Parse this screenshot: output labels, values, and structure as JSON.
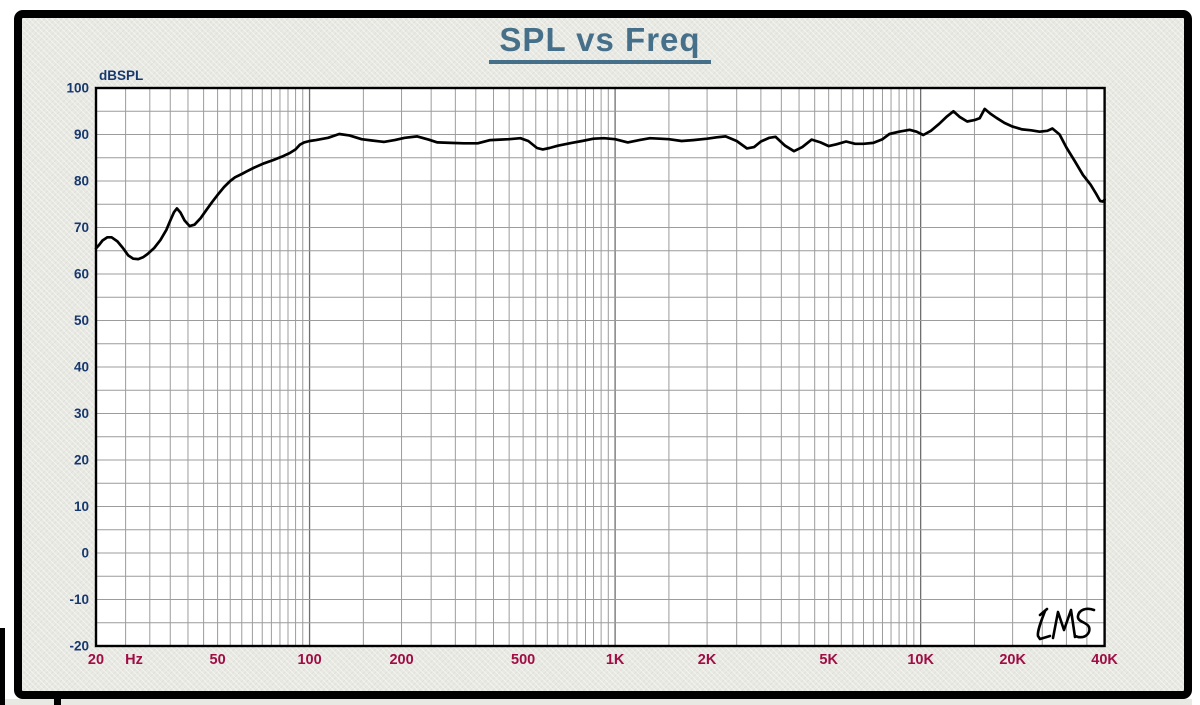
{
  "chart_data": {
    "type": "line",
    "title": "SPL vs Freq",
    "logo_text": "LMS",
    "legend": "none",
    "grid": "on",
    "x_axis": {
      "scale": "log",
      "unit": "Hz",
      "min": 20,
      "max": 40000,
      "ticks": [
        {
          "f": 20,
          "label": "20"
        },
        {
          "f": 50,
          "label": "50"
        },
        {
          "f": 100,
          "label": "100"
        },
        {
          "f": 200,
          "label": "200"
        },
        {
          "f": 500,
          "label": "500"
        },
        {
          "f": 1000,
          "label": "1K"
        },
        {
          "f": 2000,
          "label": "2K"
        },
        {
          "f": 5000,
          "label": "5K"
        },
        {
          "f": 10000,
          "label": "10K"
        },
        {
          "f": 20000,
          "label": "20K"
        },
        {
          "f": 40000,
          "label": "40K"
        }
      ]
    },
    "y_axis": {
      "label": "dBSPL",
      "min": -20,
      "max": 100,
      "minor_step": 5,
      "ticks": [
        {
          "v": 100,
          "label": "100"
        },
        {
          "v": 90,
          "label": "90"
        },
        {
          "v": 80,
          "label": "80"
        },
        {
          "v": 70,
          "label": "70"
        },
        {
          "v": 60,
          "label": "60"
        },
        {
          "v": 50,
          "label": "50"
        },
        {
          "v": 40,
          "label": "40"
        },
        {
          "v": 30,
          "label": "30"
        },
        {
          "v": 20,
          "label": "20"
        },
        {
          "v": 10,
          "label": "10"
        },
        {
          "v": 0,
          "label": "0"
        },
        {
          "v": -10,
          "label": "-10"
        },
        {
          "v": -20,
          "label": "-20"
        }
      ]
    },
    "colors": {
      "title": "#46708a",
      "y_labels": "#17386d",
      "x_labels": "#a00d45",
      "grid": "#9c9c9c",
      "grid_decade": "#6f6f6f",
      "curve": "#000000",
      "plot_bg": "#ffffff",
      "panel_bg": "#e9e9e4",
      "frame": "#000000"
    },
    "series": [
      {
        "name": "SPL",
        "color": "#000000",
        "points": [
          [
            20,
            65.5
          ],
          [
            20.5,
            66.3
          ],
          [
            21,
            67.2
          ],
          [
            21.8,
            67.9
          ],
          [
            22.5,
            67.9
          ],
          [
            23.5,
            67.0
          ],
          [
            24.5,
            65.6
          ],
          [
            25.5,
            64.0
          ],
          [
            26.5,
            63.3
          ],
          [
            27.5,
            63.2
          ],
          [
            28.5,
            63.6
          ],
          [
            29.5,
            64.3
          ],
          [
            31,
            65.6
          ],
          [
            32.5,
            67.3
          ],
          [
            34,
            69.5
          ],
          [
            35,
            71.5
          ],
          [
            36,
            73.3
          ],
          [
            36.8,
            74.1
          ],
          [
            37.8,
            73.2
          ],
          [
            39,
            71.5
          ],
          [
            40.5,
            70.3
          ],
          [
            42,
            70.6
          ],
          [
            44,
            72.0
          ],
          [
            46,
            73.8
          ],
          [
            48,
            75.5
          ],
          [
            50,
            77.0
          ],
          [
            52.5,
            78.7
          ],
          [
            55,
            80.0
          ],
          [
            57,
            80.8
          ],
          [
            60,
            81.5
          ],
          [
            62,
            82.0
          ],
          [
            66,
            82.9
          ],
          [
            71,
            83.8
          ],
          [
            76,
            84.5
          ],
          [
            81,
            85.2
          ],
          [
            86,
            86.0
          ],
          [
            90,
            86.8
          ],
          [
            93,
            87.8
          ],
          [
            96,
            88.3
          ],
          [
            100,
            88.6
          ],
          [
            105,
            88.8
          ],
          [
            115,
            89.3
          ],
          [
            125,
            90.1
          ],
          [
            135,
            89.8
          ],
          [
            148,
            89.0
          ],
          [
            160,
            88.7
          ],
          [
            175,
            88.4
          ],
          [
            190,
            88.8
          ],
          [
            205,
            89.3
          ],
          [
            225,
            89.6
          ],
          [
            245,
            88.9
          ],
          [
            262,
            88.3
          ],
          [
            290,
            88.2
          ],
          [
            320,
            88.1
          ],
          [
            355,
            88.1
          ],
          [
            390,
            88.8
          ],
          [
            420,
            88.9
          ],
          [
            450,
            89.0
          ],
          [
            490,
            89.2
          ],
          [
            520,
            88.6
          ],
          [
            555,
            87.1
          ],
          [
            580,
            86.8
          ],
          [
            610,
            87.1
          ],
          [
            650,
            87.6
          ],
          [
            720,
            88.2
          ],
          [
            780,
            88.6
          ],
          [
            850,
            89.1
          ],
          [
            920,
            89.2
          ],
          [
            1000,
            89.0
          ],
          [
            1100,
            88.3
          ],
          [
            1200,
            88.8
          ],
          [
            1300,
            89.2
          ],
          [
            1400,
            89.1
          ],
          [
            1500,
            89.0
          ],
          [
            1650,
            88.6
          ],
          [
            1800,
            88.8
          ],
          [
            2000,
            89.1
          ],
          [
            2150,
            89.4
          ],
          [
            2300,
            89.6
          ],
          [
            2500,
            88.6
          ],
          [
            2700,
            87.0
          ],
          [
            2850,
            87.3
          ],
          [
            3000,
            88.5
          ],
          [
            3200,
            89.3
          ],
          [
            3350,
            89.5
          ],
          [
            3600,
            87.6
          ],
          [
            3850,
            86.4
          ],
          [
            4100,
            87.3
          ],
          [
            4400,
            88.9
          ],
          [
            4700,
            88.3
          ],
          [
            5000,
            87.5
          ],
          [
            5300,
            87.9
          ],
          [
            5700,
            88.5
          ],
          [
            6100,
            88.0
          ],
          [
            6500,
            88.0
          ],
          [
            7000,
            88.2
          ],
          [
            7500,
            89.0
          ],
          [
            7900,
            90.1
          ],
          [
            8500,
            90.6
          ],
          [
            9200,
            91.0
          ],
          [
            9700,
            90.6
          ],
          [
            10200,
            89.9
          ],
          [
            10800,
            90.8
          ],
          [
            11500,
            92.3
          ],
          [
            12200,
            93.9
          ],
          [
            12800,
            95.0
          ],
          [
            13400,
            93.8
          ],
          [
            14200,
            92.8
          ],
          [
            15000,
            93.1
          ],
          [
            15600,
            93.5
          ],
          [
            16200,
            95.5
          ],
          [
            16900,
            94.5
          ],
          [
            17700,
            93.6
          ],
          [
            18800,
            92.5
          ],
          [
            20000,
            91.7
          ],
          [
            21500,
            91.1
          ],
          [
            23000,
            90.9
          ],
          [
            24500,
            90.6
          ],
          [
            26000,
            90.8
          ],
          [
            27000,
            91.3
          ],
          [
            28500,
            90.0
          ],
          [
            30000,
            87.2
          ],
          [
            32000,
            84.2
          ],
          [
            34000,
            81.3
          ],
          [
            36000,
            79.2
          ],
          [
            37500,
            77.3
          ],
          [
            38700,
            75.7
          ],
          [
            39500,
            75.6
          ],
          [
            40000,
            76.0
          ]
        ]
      }
    ]
  }
}
